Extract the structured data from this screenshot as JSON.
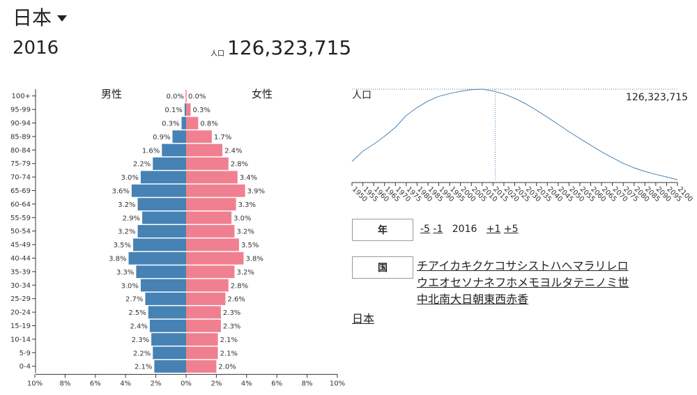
{
  "country": "日本",
  "year": "2016",
  "population_label": "人口",
  "population_value": "126,323,715",
  "pyramid": {
    "male_label": "男性",
    "female_label": "女性",
    "x_ticks": [
      "10%",
      "8%",
      "6%",
      "4%",
      "2%",
      "0%",
      "2%",
      "4%",
      "6%",
      "8%",
      "10%"
    ]
  },
  "line_chart": {
    "label": "人口",
    "value": "126,323,715"
  },
  "controls": {
    "year_label": "年",
    "minus5": "-5",
    "minus1": "-1",
    "current": "2016",
    "plus1": "+1",
    "plus5": "+5",
    "country_label": "国"
  },
  "kana_rows": [
    [
      "チ",
      "ア",
      "イ",
      "カ",
      "キ",
      "ク",
      "ケ",
      "コ",
      "サ",
      "シ",
      "ス",
      "ト",
      "ハ",
      "ヘ",
      "マ",
      "ラ",
      "リ",
      "レ",
      "ロ"
    ],
    [
      "ウ",
      "エ",
      "オ",
      "セ",
      "ソ",
      "ナ",
      "ネ",
      "フ",
      "ホ",
      "メ",
      "モ",
      "ヨ",
      "ル",
      "タ",
      "テ",
      "ニ",
      "ノ",
      "ミ",
      "世"
    ],
    [
      "中",
      "北",
      "南",
      "大",
      "日",
      "朝",
      "東",
      "西",
      "赤",
      "香"
    ]
  ],
  "selected_country": "日本",
  "colors": {
    "male": "#4682b4",
    "female": "#f08090",
    "line": "#4682b4"
  },
  "chart_data": [
    {
      "type": "bar",
      "title": "",
      "categories": [
        "100+",
        "95-99",
        "90-94",
        "85-89",
        "80-84",
        "75-79",
        "70-74",
        "65-69",
        "60-64",
        "55-59",
        "50-54",
        "45-49",
        "40-44",
        "35-39",
        "30-34",
        "25-29",
        "20-24",
        "15-19",
        "10-14",
        "5-9",
        "0-4"
      ],
      "series": [
        {
          "name": "男性",
          "values": [
            0.0,
            0.1,
            0.3,
            0.9,
            1.6,
            2.2,
            3.0,
            3.6,
            3.2,
            2.9,
            3.2,
            3.5,
            3.8,
            3.3,
            3.0,
            2.7,
            2.5,
            2.4,
            2.3,
            2.2,
            2.1
          ]
        },
        {
          "name": "女性",
          "values": [
            0.0,
            0.3,
            0.8,
            1.7,
            2.4,
            2.8,
            3.4,
            3.9,
            3.3,
            3.0,
            3.2,
            3.5,
            3.8,
            3.2,
            2.8,
            2.6,
            2.3,
            2.3,
            2.1,
            2.1,
            2.0
          ]
        }
      ],
      "xlim": [
        -10,
        10
      ],
      "unit": "%"
    },
    {
      "type": "line",
      "title": "人口",
      "x": [
        1950,
        1955,
        1960,
        1965,
        1970,
        1975,
        1980,
        1985,
        1990,
        1995,
        2000,
        2005,
        2010,
        2015,
        2020,
        2025,
        2030,
        2035,
        2040,
        2045,
        2050,
        2055,
        2060,
        2065,
        2070,
        2075,
        2080,
        2085,
        2090,
        2095,
        2100
      ],
      "x_ticks": [
        1950,
        1955,
        1960,
        1965,
        1970,
        1975,
        1980,
        1985,
        1990,
        1995,
        2000,
        2005,
        2010,
        2015,
        2020,
        2025,
        2030,
        2035,
        2040,
        2045,
        2050,
        2055,
        2060,
        2065,
        2070,
        2075,
        2080,
        2085,
        2090,
        2095,
        2100
      ],
      "series": [
        {
          "values": [
            83.8,
            90.0,
            94.3,
            99.2,
            104.7,
            111.9,
            116.8,
            120.8,
            123.7,
            125.4,
            126.8,
            127.8,
            128.1,
            127.0,
            125.2,
            122.5,
            119.1,
            115.2,
            110.9,
            106.5,
            102.0,
            97.8,
            93.7,
            89.7,
            86.0,
            82.6,
            79.8,
            77.6,
            75.8,
            74.2,
            72.5
          ]
        }
      ],
      "marker_x": 2016,
      "marker_value": "126,323,715"
    }
  ]
}
